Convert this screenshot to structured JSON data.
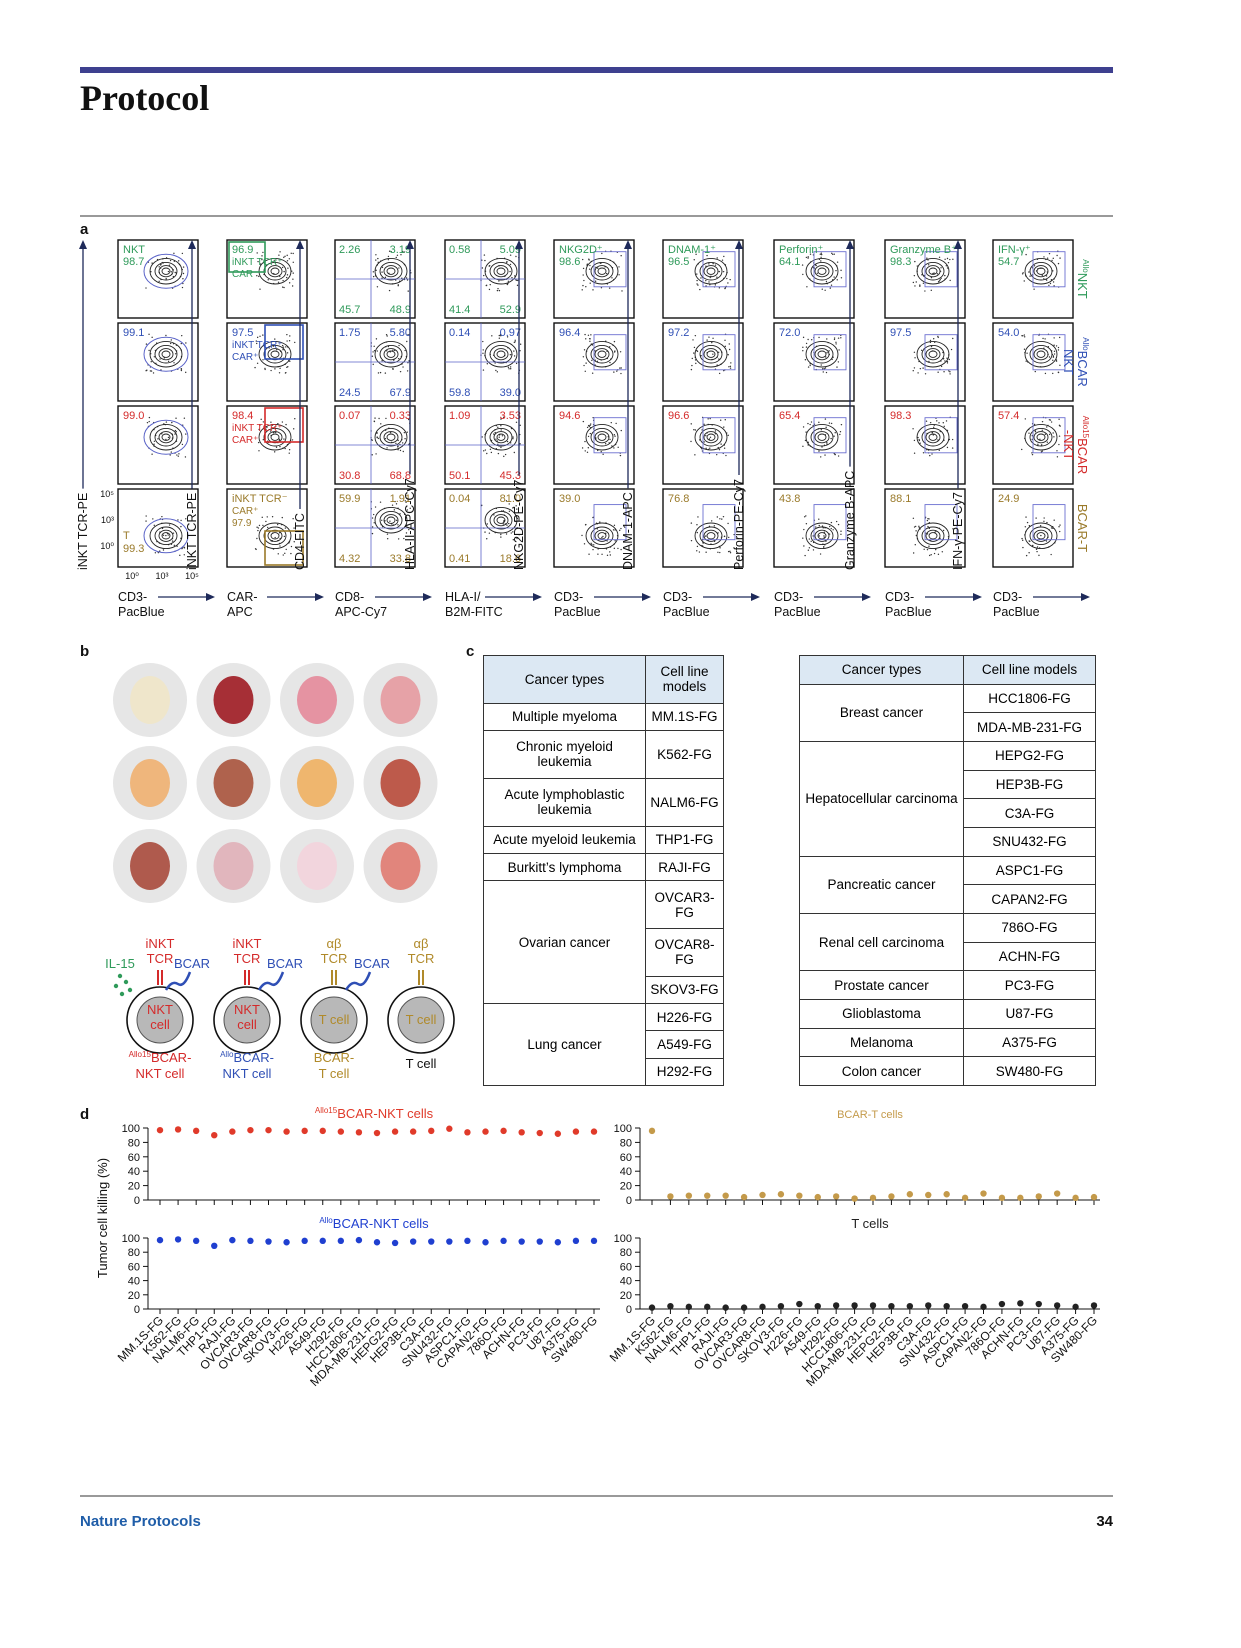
{
  "header": {
    "section": "Protocol"
  },
  "footer": {
    "journal": "Nature Protocols",
    "page": "34"
  },
  "panel_labels": [
    "a",
    "b",
    "c",
    "d"
  ],
  "panel_a": {
    "row_labels": [
      {
        "sup": "Allo",
        "lines": [
          "NKT"
        ],
        "color": "#2f9a5a"
      },
      {
        "sup": "Allo",
        "lines": [
          "BCAR",
          "NKT"
        ],
        "color": "#2f4fb5"
      },
      {
        "sup": "Allo15",
        "lines": [
          "BCAR",
          "-NKT"
        ],
        "color": "#d42a2a"
      },
      {
        "lines": [
          "BCAR-T"
        ],
        "color": "#9a7a2a"
      }
    ],
    "axis_ticks": {
      "y": [
        "10⁵",
        "10³",
        "10⁰"
      ],
      "x": [
        "10⁰",
        "10³",
        "10⁵"
      ]
    },
    "columns": [
      {
        "y_label": "iNKT TCR-PE",
        "x_label": [
          "CD3-",
          "PacBlue"
        ],
        "layout": "corner",
        "plots": [
          [
            "NKT",
            "98.7"
          ],
          [
            "99.1"
          ],
          [
            "99.0"
          ],
          [
            "T",
            "99.3"
          ]
        ]
      },
      {
        "y_label": "iNKT TCR-PE",
        "x_label": [
          "CAR-",
          "APC"
        ],
        "layout": "corner",
        "plots": [
          [
            "96.9",
            "iNKT TCR⁺",
            "CAR⁻"
          ],
          [
            "97.5",
            "iNKT TCR⁺",
            "CAR⁺"
          ],
          [
            "98.4",
            "iNKT TCR⁺",
            "CAR⁺"
          ],
          [
            "iNKT TCR⁻",
            "CAR⁺",
            "97.9"
          ]
        ]
      },
      {
        "y_label": "CD4-FITC",
        "x_label": [
          "CD8-",
          "APC-Cy7"
        ],
        "layout": "quad",
        "plots": [
          [
            "2.26",
            "3.19",
            "45.7",
            "48.9"
          ],
          [
            "1.75",
            "5.80",
            "24.5",
            "67.9"
          ],
          [
            "0.07",
            "0.33",
            "30.8",
            "68.8"
          ],
          [
            "59.9",
            "1.91",
            "4.32",
            "33.8"
          ]
        ]
      },
      {
        "y_label": "HLA-II-APC-Cy7",
        "x_label": [
          "HLA-I/",
          "B2M-FITC"
        ],
        "layout": "quad",
        "plots": [
          [
            "0.58",
            "5.09",
            "41.4",
            "52.9"
          ],
          [
            "0.14",
            "0.97",
            "59.8",
            "39.0"
          ],
          [
            "1.09",
            "3.53",
            "50.1",
            "45.3"
          ],
          [
            "0.04",
            "81.0",
            "0.41",
            "18.6"
          ]
        ]
      },
      {
        "y_label": "NKG2D-PE-Cy7",
        "x_label": [
          "CD3-",
          "PacBlue"
        ],
        "layout": "corner",
        "plots": [
          [
            "NKG2D⁺",
            "98.6"
          ],
          [
            "96.4"
          ],
          [
            "94.6"
          ],
          [
            "39.0"
          ]
        ]
      },
      {
        "y_label": "DNAM-1-APC",
        "x_label": [
          "CD3-",
          "PacBlue"
        ],
        "layout": "corner",
        "plots": [
          [
            "DNAM-1⁺",
            "96.5"
          ],
          [
            "97.2"
          ],
          [
            "96.6"
          ],
          [
            "76.8"
          ]
        ]
      },
      {
        "y_label": "Perforin-PE-Cy7",
        "x_label": [
          "CD3-",
          "PacBlue"
        ],
        "layout": "corner",
        "plots": [
          [
            "Perforin⁺",
            "64.1"
          ],
          [
            "72.0"
          ],
          [
            "65.4"
          ],
          [
            "43.8"
          ]
        ]
      },
      {
        "y_label": "Granzyme B-APC",
        "x_label": [
          "CD3-",
          "PacBlue"
        ],
        "layout": "corner",
        "plots": [
          [
            "Granzyme B⁺",
            "98.3"
          ],
          [
            "97.5"
          ],
          [
            "98.3"
          ],
          [
            "88.1"
          ]
        ]
      },
      {
        "y_label": "IFN-γ-PE-Cy7",
        "x_label": [
          "CD3-",
          "PacBlue"
        ],
        "layout": "corner",
        "plots": [
          [
            "IFN-γ⁺",
            "54.7"
          ],
          [
            "54.0"
          ],
          [
            "57.4"
          ],
          [
            "24.9"
          ]
        ]
      }
    ]
  },
  "panel_b": {
    "cells": [
      {
        "receptors": [
          {
            "lines": [
              "IL-15"
            ],
            "color": "#2f9a5a"
          },
          {
            "lines": [
              "iNKT",
              "TCR"
            ],
            "color": "#d42a2a"
          },
          {
            "lines": [
              "BCAR"
            ],
            "color": "#2f4fb5"
          }
        ],
        "inner": [
          "NKT",
          "cell"
        ],
        "inner_color": "#d42a2a",
        "label": {
          "sup": "Allo15",
          "lines": [
            "BCAR-",
            "NKT cell"
          ]
        },
        "label_color": "#d42a2a"
      },
      {
        "receptors": [
          {
            "lines": [
              "iNKT",
              "TCR"
            ],
            "color": "#d42a2a"
          },
          {
            "lines": [
              "BCAR"
            ],
            "color": "#2f4fb5"
          }
        ],
        "inner": [
          "NKT",
          "cell"
        ],
        "inner_color": "#d42a2a",
        "label": {
          "sup": "Allo",
          "lines": [
            "BCAR-",
            "NKT cell"
          ]
        },
        "label_color": "#2f4fb5"
      },
      {
        "receptors": [
          {
            "lines": [
              "αβ",
              "TCR"
            ],
            "color": "#b08a2a"
          },
          {
            "lines": [
              "BCAR"
            ],
            "color": "#2f4fb5"
          }
        ],
        "inner": [
          "T cell"
        ],
        "inner_color": "#b08a2a",
        "label": {
          "lines": [
            "BCAR-",
            "T cell"
          ]
        },
        "label_color": "#b08a2a"
      },
      {
        "receptors": [
          {
            "lines": [
              "αβ",
              "TCR"
            ],
            "color": "#b08a2a"
          }
        ],
        "inner": [
          "T cell"
        ],
        "inner_color": "#b08a2a",
        "label": {
          "lines": [
            "T cell"
          ]
        },
        "label_color": "#111"
      }
    ]
  },
  "panel_c": {
    "tables": [
      {
        "header": [
          "Cancer types",
          "Cell line models"
        ],
        "groups": [
          {
            "type": "Multiple myeloma",
            "lines": [
              "MM.1S-FG"
            ]
          },
          {
            "type": "Chronic myeloid leukemia",
            "lines": [
              "K562-FG"
            ]
          },
          {
            "type": "Acute lymphoblastic leukemia",
            "lines": [
              "NALM6-FG"
            ]
          },
          {
            "type": "Acute myeloid leukemia",
            "lines": [
              "THP1-FG"
            ]
          },
          {
            "type": "Burkitt’s lymphoma",
            "lines": [
              "RAJI-FG"
            ]
          },
          {
            "type": "Ovarian cancer",
            "lines": [
              "OVCAR3-FG",
              "OVCAR8-FG",
              "SKOV3-FG"
            ]
          },
          {
            "type": "Lung cancer",
            "lines": [
              "H226-FG",
              "A549-FG",
              "H292-FG"
            ]
          }
        ]
      },
      {
        "header": [
          "Cancer types",
          "Cell line models"
        ],
        "groups": [
          {
            "type": "Breast cancer",
            "lines": [
              "HCC1806-FG",
              "MDA-MB-231-FG"
            ]
          },
          {
            "type": "Hepatocellular carcinoma",
            "lines": [
              "HEPG2-FG",
              "HEP3B-FG",
              "C3A-FG",
              "SNU432-FG"
            ]
          },
          {
            "type": "Pancreatic cancer",
            "lines": [
              "ASPC1-FG",
              "CAPAN2-FG"
            ]
          },
          {
            "type": "Renal cell carcinoma",
            "lines": [
              "786O-FG",
              "ACHN-FG"
            ]
          },
          {
            "type": "Prostate cancer",
            "lines": [
              "PC3-FG"
            ]
          },
          {
            "type": "Glioblastoma",
            "lines": [
              "U87-FG"
            ]
          },
          {
            "type": "Melanoma",
            "lines": [
              "A375-FG"
            ]
          },
          {
            "type": "Colon cancer",
            "lines": [
              "SW480-FG"
            ]
          }
        ]
      }
    ]
  },
  "panel_d": {
    "ylabel": "Tumor cell killing (%)"
  },
  "chart_data": [
    {
      "type": "dot",
      "title_sup": "Allo15",
      "title": "BCAR-NKT cells",
      "color": "#e03a2a",
      "ylim": [
        0,
        100
      ],
      "yticks": [
        0,
        20,
        40,
        60,
        80,
        100
      ],
      "values": [
        97,
        98,
        96,
        90,
        95,
        97,
        97,
        95,
        96,
        96,
        95,
        94,
        93,
        95,
        95,
        96,
        99,
        94,
        95,
        96,
        94,
        93,
        92,
        95,
        95
      ]
    },
    {
      "type": "dot",
      "title": "BCAR-T cells",
      "color": "#c49a4a",
      "ylim": [
        0,
        100
      ],
      "yticks": [
        0,
        20,
        40,
        60,
        80,
        100
      ],
      "values": [
        96,
        5,
        6,
        6,
        6,
        4,
        7,
        8,
        6,
        4,
        5,
        2,
        3,
        5,
        8,
        7,
        8,
        3,
        9,
        3,
        3,
        5,
        9,
        3,
        4
      ]
    },
    {
      "type": "dot",
      "title_sup": "Allo",
      "title": "BCAR-NKT cells",
      "color": "#1f3fd0",
      "ylim": [
        0,
        100
      ],
      "yticks": [
        0,
        20,
        40,
        60,
        80,
        100
      ],
      "categories": [
        "MM.1S-FG",
        "K562-FG",
        "NALM6-FG",
        "THP1-FG",
        "RAJI-FG",
        "OVCAR3-FG",
        "OVCAR8-FG",
        "SKOV3-FG",
        "H226-FG",
        "A549-FG",
        "H292-FG",
        "HCC1806-FG",
        "MDA-MB-231-FG",
        "HEPG2-FG",
        "HEP3B-FG",
        "C3A-FG",
        "SNU432-FG",
        "ASPC1-FG",
        "CAPAN2-FG",
        "786O-FG",
        "ACHN-FG",
        "PC3-FG",
        "U87-FG",
        "A375-FG",
        "SW480-FG"
      ],
      "values": [
        97,
        98,
        96,
        89,
        97,
        96,
        95,
        94,
        96,
        96,
        96,
        97,
        94,
        93,
        95,
        95,
        95,
        96,
        94,
        96,
        95,
        95,
        94,
        96,
        96
      ]
    },
    {
      "type": "dot",
      "title": "T cells",
      "color": "#222222",
      "ylim": [
        0,
        100
      ],
      "yticks": [
        0,
        20,
        40,
        60,
        80,
        100
      ],
      "categories": [
        "MM.1S-FG",
        "K562-FG",
        "NALM6-FG",
        "THP1-FG",
        "RAJI-FG",
        "OVCAR3-FG",
        "OVCAR8-FG",
        "SKOV3-FG",
        "H226-FG",
        "A549-FG",
        "H292-FG",
        "HCC1806-FG",
        "MDA-MB-231-FG",
        "HEPG2-FG",
        "HEP3B-FG",
        "C3A-FG",
        "SNU432-FG",
        "ASPC1-FG",
        "CAPAN2-FG",
        "786O-FG",
        "ACHN-FG",
        "PC3-FG",
        "U87-FG",
        "A375-FG",
        "SW480-FG"
      ],
      "values": [
        2,
        4,
        3,
        3,
        2,
        2,
        3,
        4,
        7,
        4,
        5,
        5,
        5,
        4,
        4,
        5,
        4,
        4,
        3,
        7,
        8,
        7,
        5,
        3,
        5
      ]
    }
  ]
}
